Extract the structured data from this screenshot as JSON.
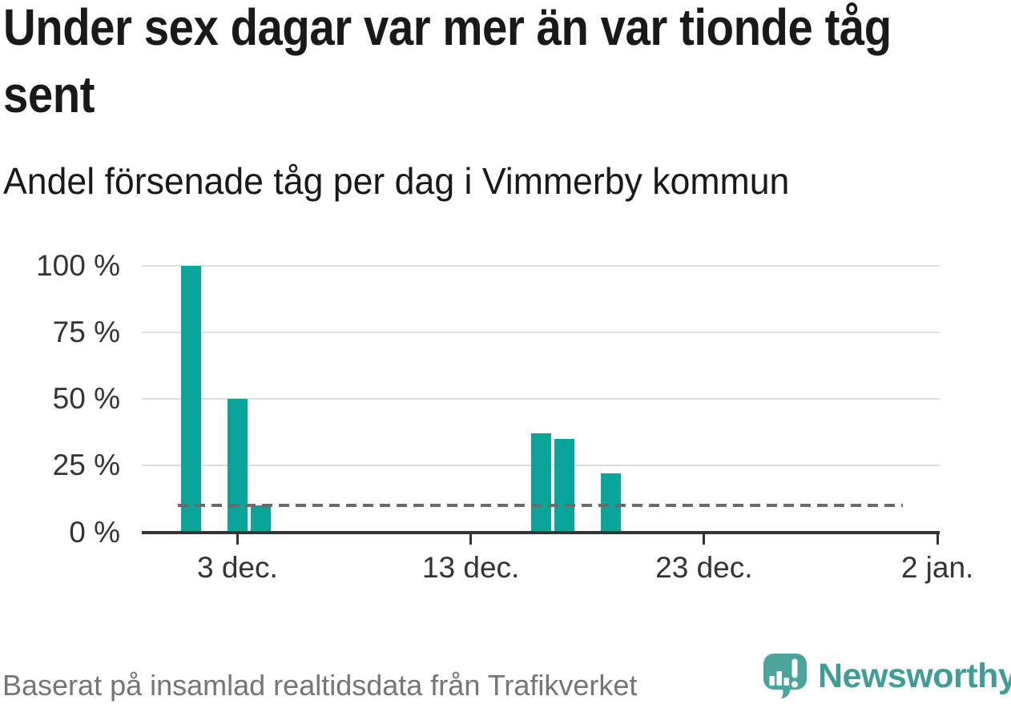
{
  "header": {
    "title": "Under sex dagar var mer än var tionde tåg sent",
    "subtitle": "Andel försenade tåg per dag i Vimmerby kommun"
  },
  "footer": {
    "source": "Baserat på insamlad realtidsdata från Trafikverket",
    "brand": "Newsworthy"
  },
  "colors": {
    "bar": "#0aa49b",
    "reference_line": "#6a6a6a",
    "gridline": "#dedede",
    "axis_text": "#333333",
    "title_text": "#191919",
    "source_text": "#757575",
    "brand_teal": "#3f9d97",
    "logo_mark_teal": "#4ca49e"
  },
  "chart_data": {
    "type": "bar",
    "title": "Under sex dagar var mer än var tionde tåg sent",
    "subtitle": "Andel försenade tåg per dag i Vimmerby kommun",
    "unit": "%",
    "grid": "horizontal",
    "legend": "none",
    "bars": [
      {
        "date": "1 dec.",
        "day": 1,
        "value": 100
      },
      {
        "date": "3 dec.",
        "day": 3,
        "value": 50
      },
      {
        "date": "4 dec.",
        "day": 4,
        "value": 10
      },
      {
        "date": "16 dec.",
        "day": 16,
        "value": 37
      },
      {
        "date": "17 dec.",
        "day": 17,
        "value": 35
      },
      {
        "date": "19 dec.",
        "day": 19,
        "value": 22
      }
    ],
    "reference_line": {
      "value": 10,
      "style": "dashed"
    },
    "y_axis": {
      "min": 0,
      "max": 100,
      "ticks": [
        {
          "value": 0,
          "label": "0 %"
        },
        {
          "value": 25,
          "label": "25 %"
        },
        {
          "value": 50,
          "label": "50 %"
        },
        {
          "value": 75,
          "label": "75 %"
        },
        {
          "value": 100,
          "label": "100 %"
        }
      ]
    },
    "x_axis": {
      "day_min": -1.1,
      "day_max": 33.1,
      "ticks": [
        {
          "day": 3,
          "label": "3 dec."
        },
        {
          "day": 13,
          "label": "13 dec."
        },
        {
          "day": 23,
          "label": "23 dec."
        },
        {
          "day": 33,
          "label": "2 jan."
        }
      ]
    }
  }
}
